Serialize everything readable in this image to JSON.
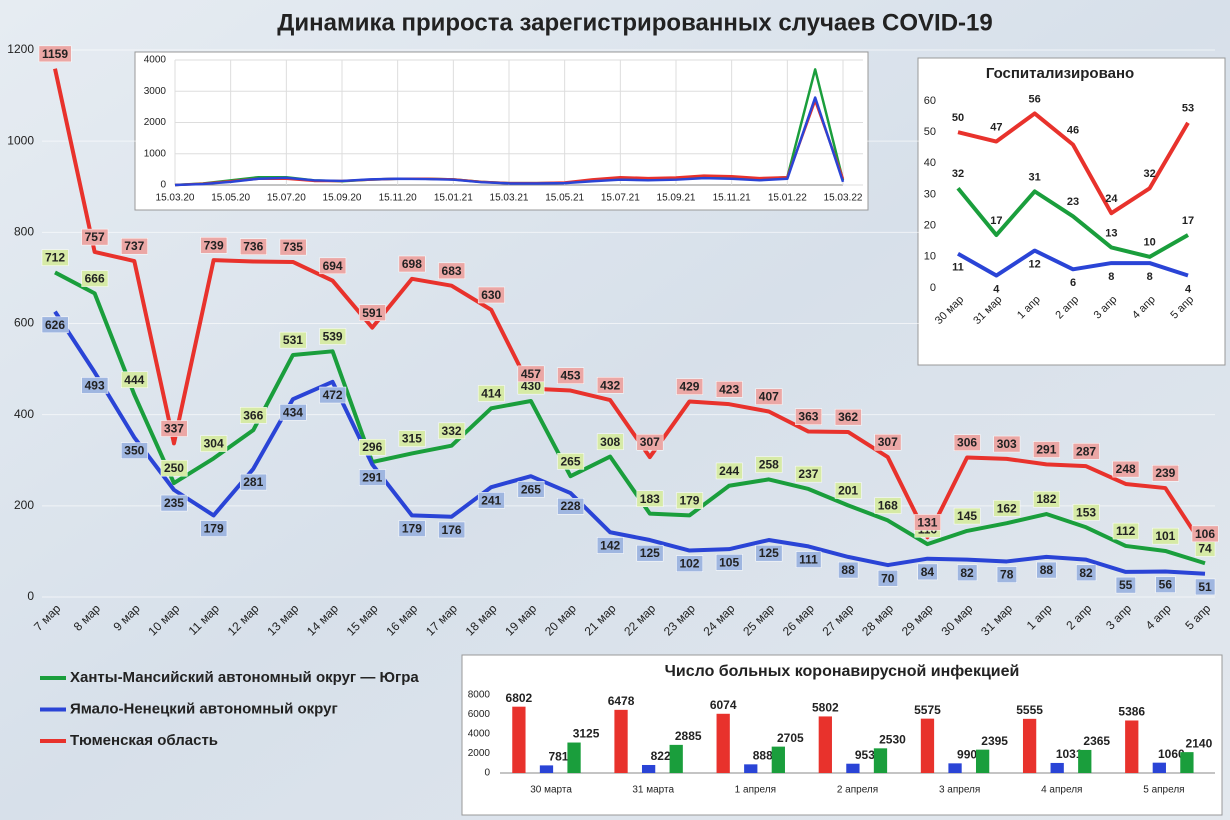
{
  "chart_data": [
    {
      "type": "line",
      "title": "Динамика прироста зарегистрированных случаев COVID-19",
      "categories": [
        "7 мар",
        "8 мар",
        "9 мар",
        "10 мар",
        "11 мар",
        "12 мар",
        "13 мар",
        "14 мар",
        "15 мар",
        "16 мар",
        "17 мар",
        "18 мар",
        "19 мар",
        "20 мар",
        "21 мар",
        "22 мар",
        "23 мар",
        "24 мар",
        "25 мар",
        "26 мар",
        "27 мар",
        "28 мар",
        "29 мар",
        "30 мар",
        "31 мар",
        "1 апр",
        "2 апр",
        "3 апр",
        "4 апр",
        "5 апр"
      ],
      "series": [
        {
          "name": "Ханты-Мансийский автономный округ — Югра",
          "color": "#1a9e3c",
          "values": [
            712,
            666,
            444,
            250,
            304,
            366,
            531,
            539,
            296,
            315,
            332,
            414,
            430,
            265,
            308,
            183,
            179,
            244,
            258,
            237,
            201,
            168,
            116,
            145,
            162,
            182,
            153,
            112,
            101,
            74
          ]
        },
        {
          "name": "Ямало-Ненецкий автономный округ",
          "color": "#2a44d6",
          "values": [
            626,
            493,
            350,
            235,
            179,
            281,
            434,
            472,
            291,
            179,
            176,
            241,
            265,
            228,
            142,
            125,
            102,
            105,
            125,
            111,
            88,
            70,
            84,
            82,
            78,
            88,
            82,
            55,
            56,
            51
          ]
        },
        {
          "name": "Тюменская область",
          "color": "#e8322c",
          "values": [
            1159,
            757,
            737,
            337,
            739,
            736,
            735,
            694,
            591,
            698,
            683,
            630,
            457,
            453,
            432,
            307,
            429,
            423,
            407,
            363,
            362,
            307,
            131,
            306,
            303,
            291,
            287,
            248,
            239,
            106
          ]
        }
      ],
      "ylim": [
        0,
        1200
      ],
      "yticks": [
        0,
        200,
        400,
        600,
        800,
        1000,
        1200
      ],
      "grid": true,
      "data_labels": true,
      "legend": "bottom-left"
    },
    {
      "type": "line",
      "categories": [
        "15.03.20",
        null,
        "15.05.20",
        null,
        "15.07.20",
        null,
        "15.09.20",
        null,
        "15.11.20",
        null,
        "15.01.21",
        null,
        "15.03.21",
        null,
        "15.05.21",
        null,
        "15.07.21",
        null,
        "15.09.21",
        null,
        "15.11.21",
        null,
        "15.01.22",
        null,
        "15.03.22"
      ],
      "series": [
        {
          "color": "#1a9e3c",
          "values": [
            0,
            50,
            150,
            250,
            250,
            150,
            120,
            170,
            200,
            200,
            180,
            100,
            60,
            60,
            70,
            150,
            220,
            200,
            220,
            270,
            260,
            200,
            250,
            3700,
            150
          ]
        },
        {
          "color": "#e8322c",
          "values": [
            0,
            40,
            120,
            200,
            200,
            130,
            130,
            170,
            200,
            200,
            180,
            100,
            60,
            60,
            80,
            180,
            250,
            220,
            240,
            300,
            280,
            220,
            250,
            2700,
            200
          ]
        },
        {
          "color": "#2a44d6",
          "values": [
            0,
            30,
            100,
            200,
            230,
            150,
            130,
            180,
            200,
            190,
            170,
            90,
            50,
            50,
            60,
            120,
            170,
            150,
            170,
            220,
            200,
            150,
            200,
            2800,
            100
          ]
        }
      ],
      "ylim": [
        0,
        4000
      ],
      "yticks": [
        0,
        1000,
        2000,
        3000,
        4000
      ],
      "grid": true,
      "data_labels": false
    },
    {
      "type": "line",
      "title": "Госпитализировано",
      "categories": [
        "30 мар",
        "31 мар",
        "1 апр",
        "2 апр",
        "3 апр",
        "4 апр",
        "5 апр"
      ],
      "series": [
        {
          "color": "#e8322c",
          "values": [
            50,
            47,
            56,
            46,
            24,
            32,
            53
          ]
        },
        {
          "color": "#1a9e3c",
          "values": [
            32,
            17,
            31,
            23,
            13,
            10,
            17
          ]
        },
        {
          "color": "#2a44d6",
          "values": [
            11,
            4,
            12,
            6,
            8,
            8,
            4
          ]
        }
      ],
      "ylim": [
        0,
        60
      ],
      "yticks": [
        0,
        10,
        20,
        30,
        40,
        50,
        60
      ],
      "grid": false,
      "data_labels": true
    },
    {
      "type": "bar",
      "title": "Число больных коронавирусной  инфекцией",
      "categories": [
        "30 марта",
        "31 марта",
        "1 апреля",
        "2 апреля",
        "3 апреля",
        "4 апреля",
        "5 апреля"
      ],
      "series": [
        {
          "color": "#e8322c",
          "values": [
            6802,
            6478,
            6074,
            5802,
            5575,
            5555,
            5386
          ]
        },
        {
          "color": "#2a44d6",
          "values": [
            781,
            822,
            888,
            953,
            990,
            1031,
            1060
          ]
        },
        {
          "color": "#1a9e3c",
          "values": [
            3125,
            2885,
            2705,
            2530,
            2395,
            2365,
            2140
          ]
        }
      ],
      "ylim": [
        0,
        8000
      ],
      "yticks": [
        0,
        2000,
        4000,
        6000,
        8000
      ],
      "grid": false,
      "data_labels": true
    }
  ]
}
